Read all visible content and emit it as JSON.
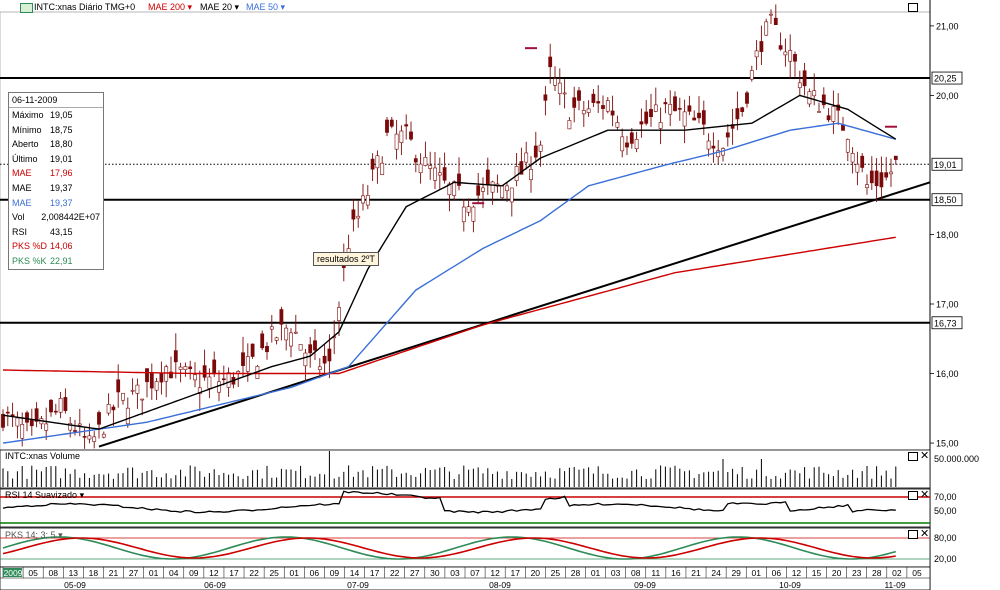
{
  "header": {
    "symbol_icon": "chart-symbol-icon",
    "title": "INTC:xnas Diário TMG+0",
    "indicators": [
      {
        "label": "MAE 200",
        "color": "#cc0000"
      },
      {
        "label": "MAE 20",
        "color": "#000000"
      },
      {
        "label": "MAE 50",
        "color": "#3a6fd8"
      }
    ]
  },
  "info_box": {
    "date": "06-11-2009",
    "rows": [
      {
        "k": "Máximo",
        "v": "19,05",
        "color": "#000000"
      },
      {
        "k": "Mínimo",
        "v": "18,75",
        "color": "#000000"
      },
      {
        "k": "Aberto",
        "v": "18,80",
        "color": "#000000"
      },
      {
        "k": "Último",
        "v": "19,01",
        "color": "#000000"
      },
      {
        "k": "MAE",
        "v": "17,96",
        "color": "#cc0000"
      },
      {
        "k": "MAE",
        "v": "19,37",
        "color": "#000000"
      },
      {
        "k": "MAE",
        "v": "19,37",
        "color": "#3a6fd8"
      },
      {
        "k": "Vol",
        "v": "2,008442E+07",
        "color": "#000000"
      },
      {
        "k": "RSI",
        "v": "43,15",
        "color": "#000000"
      },
      {
        "k": "PKS %D",
        "v": "14,06",
        "color": "#cc0000"
      },
      {
        "k": "PKS %K",
        "v": "22,91",
        "color": "#2e8b57"
      }
    ]
  },
  "annotation": "resultados 2ºT",
  "panels": {
    "volume": {
      "title": "INTC:xnas Volume",
      "tick": "50.000.000"
    },
    "rsi": {
      "title": "RSI 14 Suavizado",
      "ticks": [
        "70,00",
        "50,00"
      ]
    },
    "pks": {
      "title": "PKS 14; 3; 5",
      "ticks": [
        "80,00",
        "20,00"
      ]
    }
  },
  "chart_data": {
    "type": "candlestick",
    "title": "INTC:xnas Diário TMG+0",
    "y_ticks": [
      "21,00",
      "20,00",
      "19,01",
      "18,00",
      "17,00",
      "16,00",
      "15,00"
    ],
    "y_tick_values": [
      21.0,
      20.0,
      19.01,
      18.0,
      17.0,
      16.0,
      15.0
    ],
    "ylim": [
      14.9,
      21.2
    ],
    "last_price": 19.01,
    "x_labels": [
      "2009",
      "05",
      "08",
      "13",
      "18",
      "21",
      "27",
      "01",
      "04",
      "09",
      "12",
      "17",
      "22",
      "25",
      "01",
      "06",
      "09",
      "14",
      "17",
      "22",
      "27",
      "30",
      "03",
      "07",
      "12",
      "17",
      "20",
      "25",
      "28",
      "01",
      "03",
      "08",
      "11",
      "16",
      "21",
      "24",
      "29",
      "01",
      "06",
      "12",
      "15",
      "20",
      "23",
      "28",
      "02",
      "05"
    ],
    "month_labels": [
      "05-09",
      "06-09",
      "07-09",
      "08-09",
      "09-09",
      "10-09",
      "11-09"
    ],
    "horizontal_levels": [
      {
        "value": 20.25,
        "label": "20,25"
      },
      {
        "value": 18.5,
        "label": "18,50"
      },
      {
        "value": 16.73,
        "label": "16,73"
      }
    ],
    "dotted_level": {
      "value": 19.01,
      "label": "19,01"
    },
    "trendline": {
      "from": {
        "index": 20,
        "price": 14.95
      },
      "to": {
        "index": 184,
        "price": 18.55
      }
    },
    "anchors": [
      [
        0,
        15.4
      ],
      [
        6,
        15.1
      ],
      [
        12,
        15.5
      ],
      [
        18,
        14.95
      ],
      [
        24,
        15.6
      ],
      [
        28,
        15.7
      ],
      [
        34,
        16.1
      ],
      [
        40,
        15.9
      ],
      [
        46,
        15.9
      ],
      [
        50,
        16.0
      ],
      [
        56,
        16.5
      ],
      [
        60,
        16.7
      ],
      [
        64,
        16.2
      ],
      [
        68,
        16.1
      ],
      [
        72,
        17.9
      ],
      [
        76,
        18.6
      ],
      [
        80,
        19.4
      ],
      [
        84,
        19.4
      ],
      [
        88,
        19.0
      ],
      [
        92,
        18.7
      ],
      [
        96,
        18.5
      ],
      [
        100,
        18.6
      ],
      [
        104,
        18.7
      ],
      [
        108,
        18.9
      ],
      [
        112,
        19.3
      ],
      [
        114,
        20.3
      ],
      [
        118,
        19.8
      ],
      [
        122,
        19.8
      ],
      [
        126,
        19.9
      ],
      [
        130,
        19.4
      ],
      [
        134,
        19.6
      ],
      [
        138,
        19.8
      ],
      [
        142,
        19.7
      ],
      [
        146,
        19.5
      ],
      [
        150,
        19.3
      ],
      [
        154,
        19.8
      ],
      [
        158,
        20.8
      ],
      [
        160,
        21.0
      ],
      [
        164,
        20.6
      ],
      [
        168,
        20.0
      ],
      [
        172,
        19.8
      ],
      [
        176,
        19.5
      ],
      [
        180,
        18.7
      ],
      [
        184,
        18.8
      ],
      [
        186,
        19.01
      ]
    ],
    "ma200_anchors": [
      [
        0,
        16.05
      ],
      [
        40,
        16.0
      ],
      [
        70,
        16.0
      ],
      [
        100,
        16.7
      ],
      [
        140,
        17.45
      ],
      [
        186,
        17.96
      ]
    ],
    "ma20_anchors": [
      [
        0,
        15.4
      ],
      [
        20,
        15.2
      ],
      [
        40,
        15.7
      ],
      [
        56,
        16.1
      ],
      [
        64,
        16.25
      ],
      [
        70,
        16.6
      ],
      [
        76,
        17.5
      ],
      [
        84,
        18.4
      ],
      [
        94,
        18.75
      ],
      [
        104,
        18.7
      ],
      [
        112,
        19.1
      ],
      [
        126,
        19.5
      ],
      [
        142,
        19.5
      ],
      [
        156,
        19.6
      ],
      [
        166,
        20.0
      ],
      [
        176,
        19.8
      ],
      [
        186,
        19.37
      ]
    ],
    "ma50_anchors": [
      [
        0,
        15.0
      ],
      [
        30,
        15.3
      ],
      [
        60,
        15.8
      ],
      [
        72,
        16.1
      ],
      [
        86,
        17.2
      ],
      [
        100,
        17.8
      ],
      [
        112,
        18.2
      ],
      [
        122,
        18.7
      ],
      [
        138,
        19.0
      ],
      [
        150,
        19.2
      ],
      [
        164,
        19.5
      ],
      [
        174,
        19.6
      ],
      [
        186,
        19.37
      ]
    ],
    "n_bars": 187
  },
  "colors": {
    "ma200": "#cc0000",
    "ma20": "#000000",
    "ma50": "#3a6fd8",
    "candle": "#7a0a0a",
    "pks_k": "#2e8b57",
    "pks_d": "#cc0000",
    "marker": "#a0103a"
  }
}
